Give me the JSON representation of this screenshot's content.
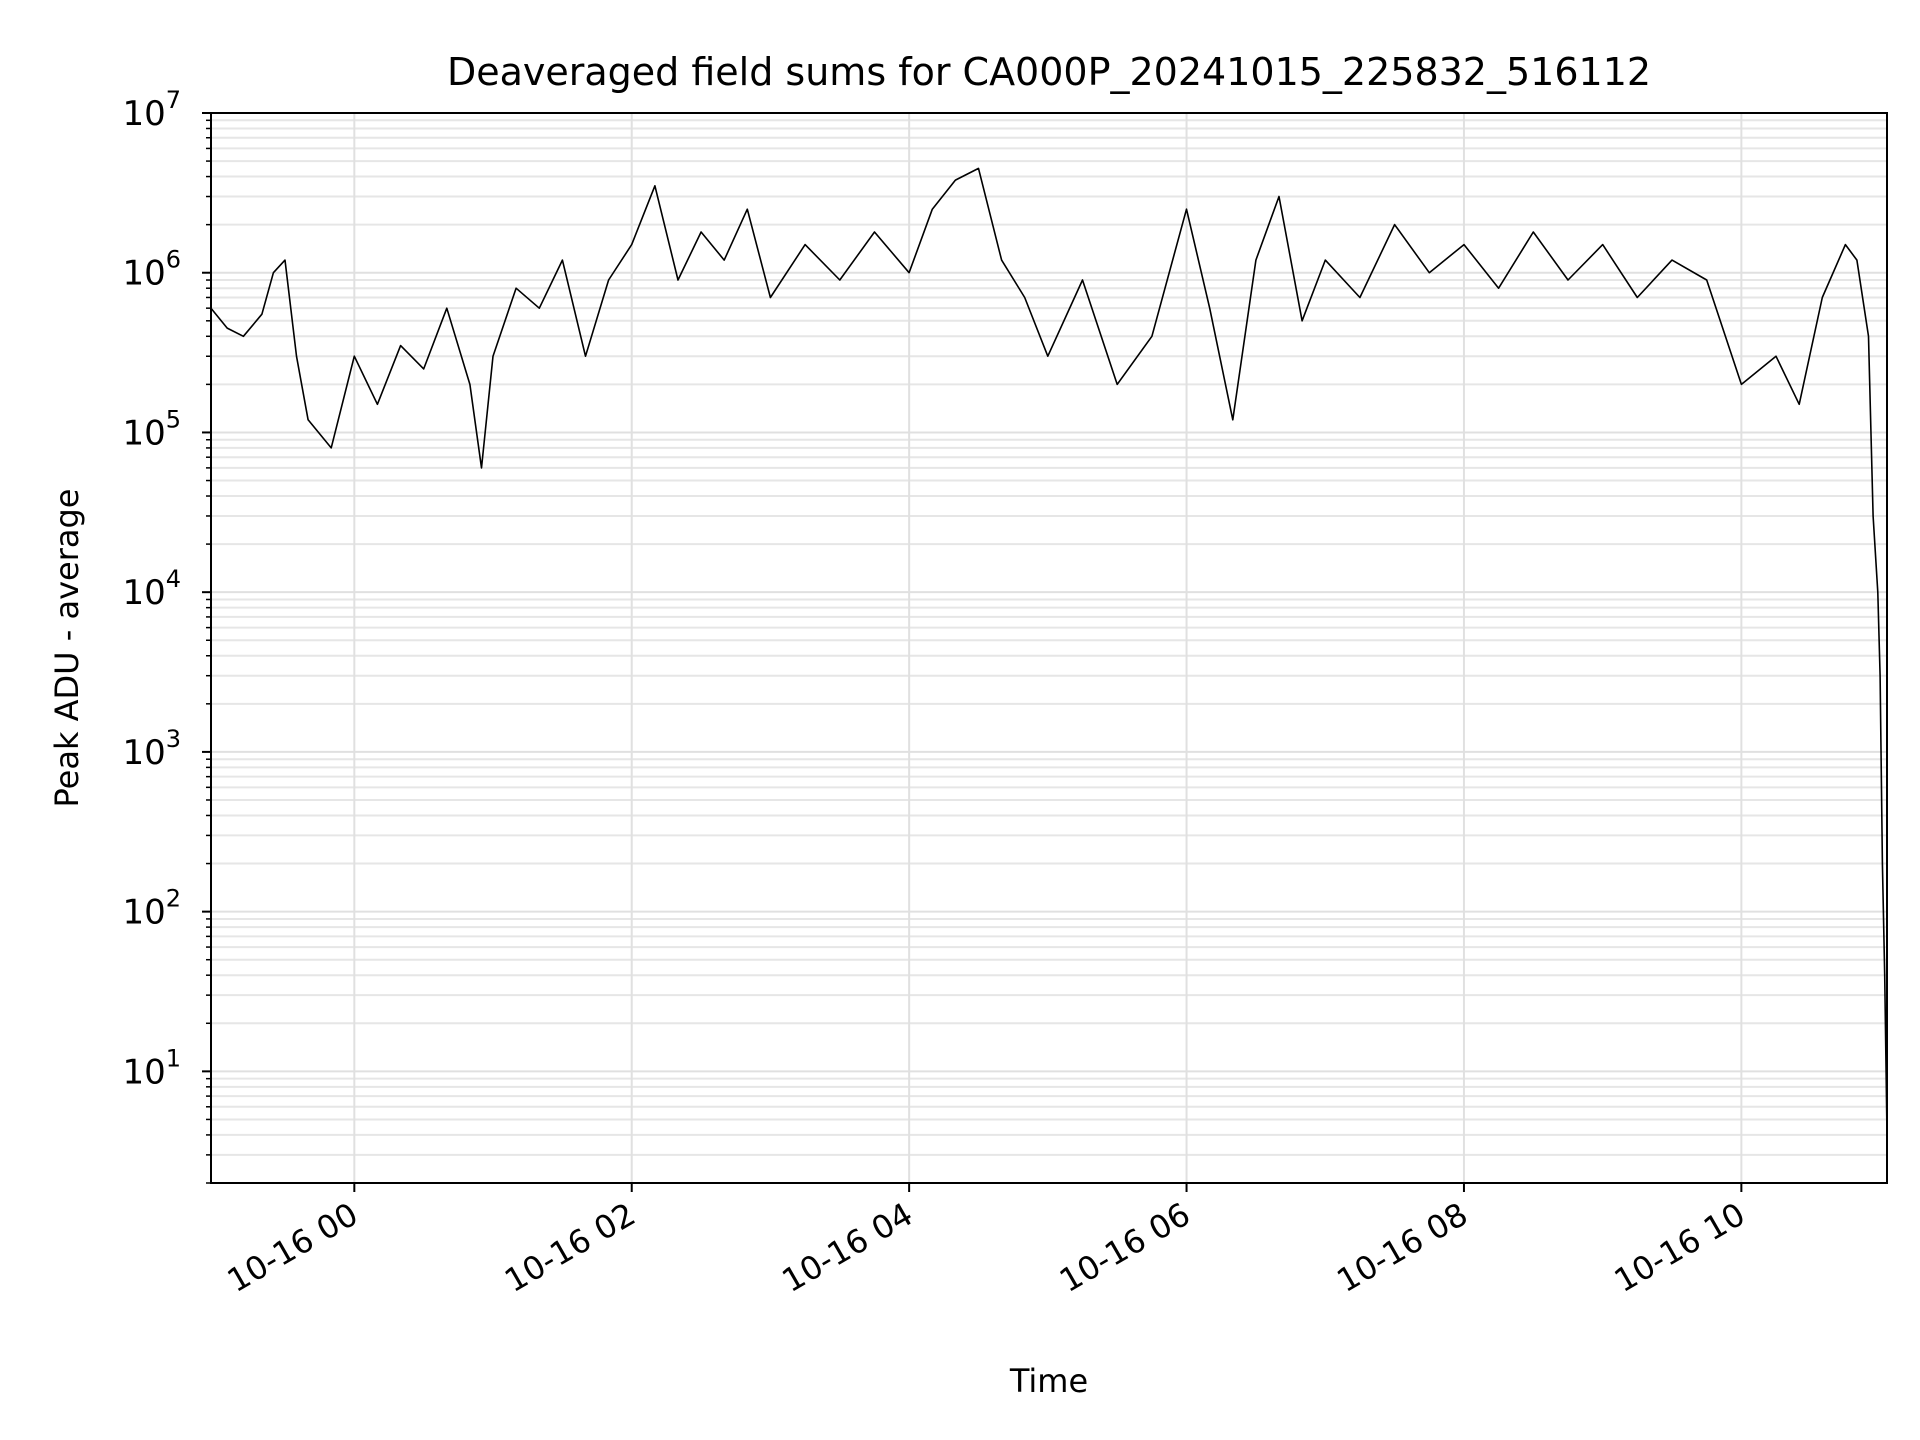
{
  "chart_data": {
    "type": "line",
    "title": "Deaveraged field sums for CA000P_20241015_225832_516112",
    "xlabel": "Time",
    "ylabel": "Peak ADU - average",
    "yscale": "log",
    "ylim": [
      2,
      10000000
    ],
    "xlim": [
      "2024-10-15 22:58",
      "2024-10-16 11:03"
    ],
    "grid": true,
    "grid_minor": true,
    "x_ticks": [
      {
        "label": "10-16 00",
        "value": "2024-10-16 00:00"
      },
      {
        "label": "10-16 02",
        "value": "2024-10-16 02:00"
      },
      {
        "label": "10-16 04",
        "value": "2024-10-16 04:00"
      },
      {
        "label": "10-16 06",
        "value": "2024-10-16 06:00"
      },
      {
        "label": "10-16 08",
        "value": "2024-10-16 08:00"
      },
      {
        "label": "10-16 10",
        "value": "2024-10-16 10:00"
      }
    ],
    "y_ticks": [
      {
        "base": "10",
        "exp": "1",
        "value": 10
      },
      {
        "base": "10",
        "exp": "2",
        "value": 100
      },
      {
        "base": "10",
        "exp": "3",
        "value": 1000
      },
      {
        "base": "10",
        "exp": "4",
        "value": 10000
      },
      {
        "base": "10",
        "exp": "5",
        "value": 100000
      },
      {
        "base": "10",
        "exp": "6",
        "value": 1000000
      },
      {
        "base": "10",
        "exp": "7",
        "value": 10000000
      }
    ],
    "series": [
      {
        "color": "#000000",
        "points": [
          [
            "2024-10-15 22:58",
            600000
          ],
          [
            "2024-10-15 23:05",
            450000
          ],
          [
            "2024-10-15 23:12",
            400000
          ],
          [
            "2024-10-15 23:20",
            550000
          ],
          [
            "2024-10-15 23:25",
            1000000
          ],
          [
            "2024-10-15 23:30",
            1200000
          ],
          [
            "2024-10-15 23:35",
            300000
          ],
          [
            "2024-10-15 23:40",
            120000
          ],
          [
            "2024-10-15 23:50",
            80000
          ],
          [
            "2024-10-16 00:00",
            300000
          ],
          [
            "2024-10-16 00:10",
            150000
          ],
          [
            "2024-10-16 00:20",
            350000
          ],
          [
            "2024-10-16 00:30",
            250000
          ],
          [
            "2024-10-16 00:40",
            600000
          ],
          [
            "2024-10-16 00:50",
            200000
          ],
          [
            "2024-10-16 00:55",
            60000
          ],
          [
            "2024-10-16 01:00",
            300000
          ],
          [
            "2024-10-16 01:10",
            800000
          ],
          [
            "2024-10-16 01:20",
            600000
          ],
          [
            "2024-10-16 01:30",
            1200000
          ],
          [
            "2024-10-16 01:40",
            300000
          ],
          [
            "2024-10-16 01:50",
            900000
          ],
          [
            "2024-10-16 02:00",
            1500000
          ],
          [
            "2024-10-16 02:10",
            3500000
          ],
          [
            "2024-10-16 02:20",
            900000
          ],
          [
            "2024-10-16 02:30",
            1800000
          ],
          [
            "2024-10-16 02:40",
            1200000
          ],
          [
            "2024-10-16 02:50",
            2500000
          ],
          [
            "2024-10-16 03:00",
            700000
          ],
          [
            "2024-10-16 03:15",
            1500000
          ],
          [
            "2024-10-16 03:30",
            900000
          ],
          [
            "2024-10-16 03:45",
            1800000
          ],
          [
            "2024-10-16 04:00",
            1000000
          ],
          [
            "2024-10-16 04:10",
            2500000
          ],
          [
            "2024-10-16 04:20",
            3800000
          ],
          [
            "2024-10-16 04:30",
            4500000
          ],
          [
            "2024-10-16 04:40",
            1200000
          ],
          [
            "2024-10-16 04:50",
            700000
          ],
          [
            "2024-10-16 05:00",
            300000
          ],
          [
            "2024-10-16 05:15",
            900000
          ],
          [
            "2024-10-16 05:30",
            200000
          ],
          [
            "2024-10-16 05:45",
            400000
          ],
          [
            "2024-10-16 06:00",
            2500000
          ],
          [
            "2024-10-16 06:10",
            600000
          ],
          [
            "2024-10-16 06:20",
            120000
          ],
          [
            "2024-10-16 06:30",
            1200000
          ],
          [
            "2024-10-16 06:40",
            3000000
          ],
          [
            "2024-10-16 06:50",
            500000
          ],
          [
            "2024-10-16 07:00",
            1200000
          ],
          [
            "2024-10-16 07:15",
            700000
          ],
          [
            "2024-10-16 07:30",
            2000000
          ],
          [
            "2024-10-16 07:45",
            1000000
          ],
          [
            "2024-10-16 08:00",
            1500000
          ],
          [
            "2024-10-16 08:15",
            800000
          ],
          [
            "2024-10-16 08:30",
            1800000
          ],
          [
            "2024-10-16 08:45",
            900000
          ],
          [
            "2024-10-16 09:00",
            1500000
          ],
          [
            "2024-10-16 09:15",
            700000
          ],
          [
            "2024-10-16 09:30",
            1200000
          ],
          [
            "2024-10-16 09:45",
            900000
          ],
          [
            "2024-10-16 10:00",
            200000
          ],
          [
            "2024-10-16 10:15",
            300000
          ],
          [
            "2024-10-16 10:25",
            150000
          ],
          [
            "2024-10-16 10:35",
            700000
          ],
          [
            "2024-10-16 10:45",
            1500000
          ],
          [
            "2024-10-16 10:50",
            1200000
          ],
          [
            "2024-10-16 10:55",
            400000
          ],
          [
            "2024-10-16 10:57",
            30000
          ],
          [
            "2024-10-16 10:59",
            10000
          ],
          [
            "2024-10-16 11:00",
            3000
          ],
          [
            "2024-10-16 11:01",
            200
          ],
          [
            "2024-10-16 11:02",
            40
          ],
          [
            "2024-10-16 11:03",
            4
          ]
        ]
      }
    ]
  }
}
